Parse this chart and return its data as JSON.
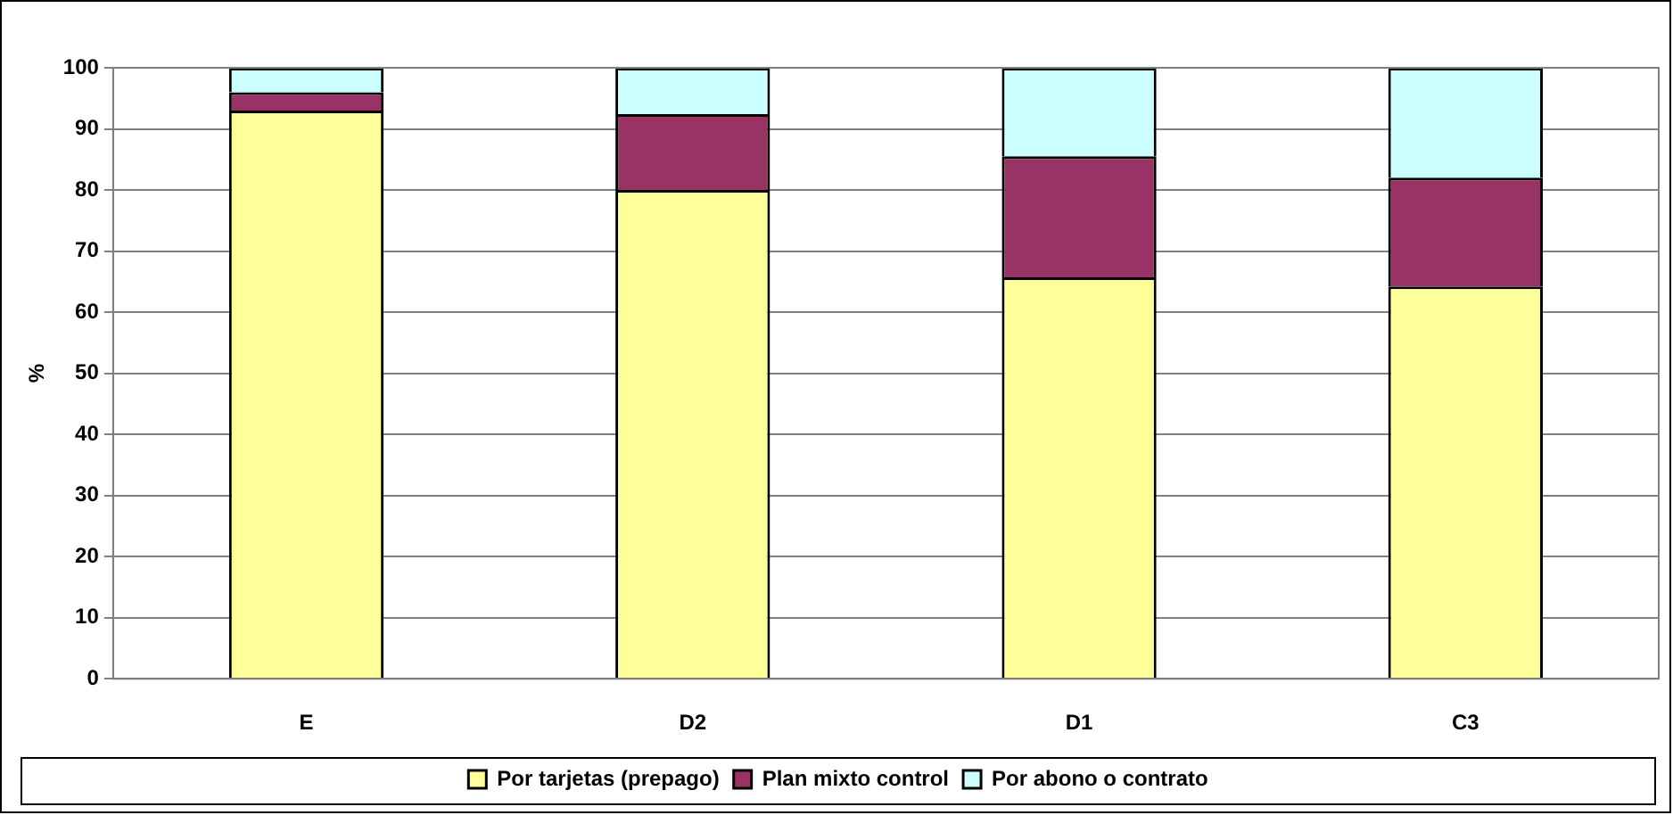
{
  "chart_data": {
    "type": "bar",
    "stacked": true,
    "ylabel": "%",
    "categories": [
      "E",
      "D2",
      "D1",
      "C3"
    ],
    "series": [
      {
        "name": "Por tarjetas (prepago)",
        "color": "#ffff99",
        "values": [
          93,
          80,
          65.7,
          64.2
        ]
      },
      {
        "name": "Plan mixto control",
        "color": "#993366",
        "values": [
          3,
          12.4,
          19.8,
          17.8
        ]
      },
      {
        "name": "Por abono o contrato",
        "color": "#ccffff",
        "values": [
          4,
          7.6,
          14.5,
          18
        ]
      }
    ],
    "ylim": [
      0,
      100
    ],
    "yticks": [
      0,
      10,
      20,
      30,
      40,
      50,
      60,
      70,
      80,
      90,
      100
    ],
    "grid": "y",
    "legend": "bottom"
  }
}
